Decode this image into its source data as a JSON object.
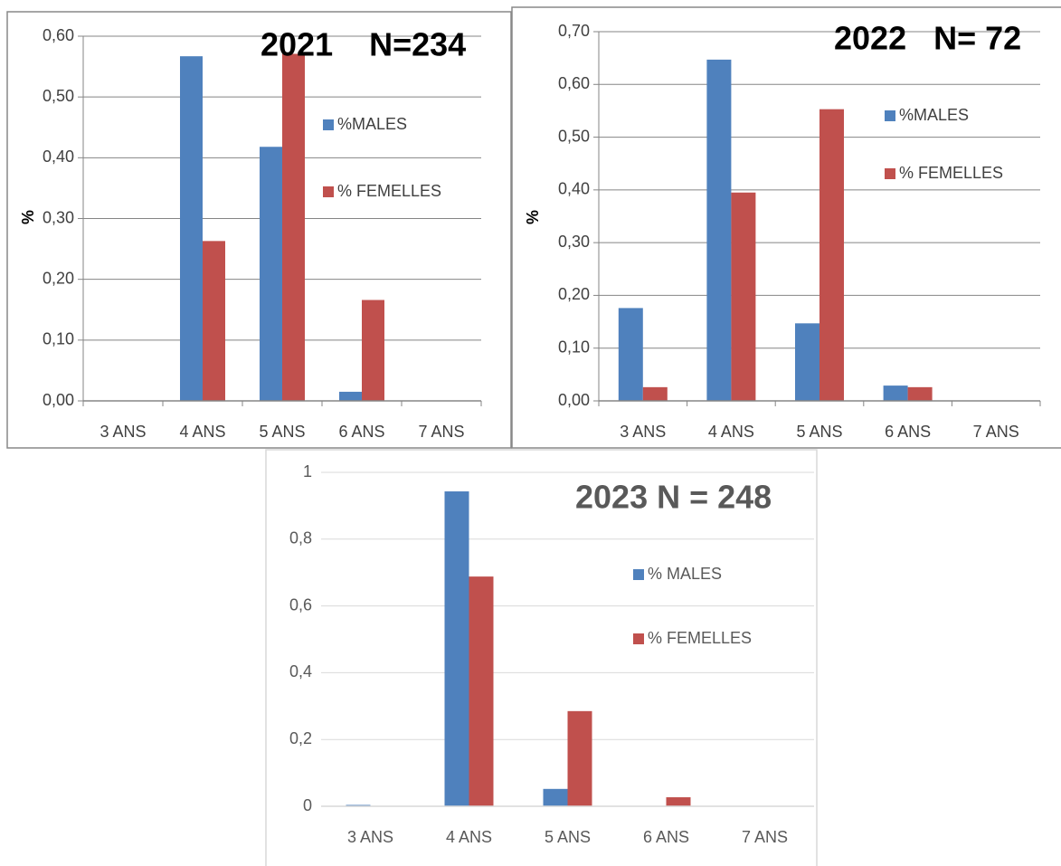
{
  "chart_data": [
    {
      "type": "bar",
      "title": "2021    N=234",
      "y_label": "%",
      "categories": [
        "3 ANS",
        "4 ANS",
        "5 ANS",
        "6 ANS",
        "7 ANS"
      ],
      "series": [
        {
          "name": "%MALES",
          "color": "#4f81bd",
          "values": [
            0,
            0.567,
            0.418,
            0.015,
            0
          ]
        },
        {
          "name": "% FEMELLES",
          "color": "#c0504d",
          "values": [
            0,
            0.263,
            0.571,
            0.166,
            0
          ]
        }
      ],
      "ylim": [
        0,
        0.6
      ],
      "yticks": [
        {
          "value": 0,
          "label": "0,00"
        },
        {
          "value": 0.1,
          "label": "0,10"
        },
        {
          "value": 0.2,
          "label": "0,20"
        },
        {
          "value": 0.3,
          "label": "0,30"
        },
        {
          "value": 0.4,
          "label": "0,40"
        },
        {
          "value": 0.5,
          "label": "0,50"
        },
        {
          "value": 0.6,
          "label": "0,60"
        }
      ],
      "grid": true
    },
    {
      "type": "bar",
      "title": "2022   N= 72",
      "y_label": "%",
      "categories": [
        "3 ANS",
        "4 ANS",
        "5 ANS",
        "6 ANS",
        "7 ANS"
      ],
      "series": [
        {
          "name": "%MALES",
          "color": "#4f81bd",
          "values": [
            0.176,
            0.647,
            0.147,
            0.029,
            0
          ]
        },
        {
          "name": "% FEMELLES",
          "color": "#c0504d",
          "values": [
            0.026,
            0.395,
            0.553,
            0.026,
            0
          ]
        }
      ],
      "ylim": [
        0,
        0.7
      ],
      "yticks": [
        {
          "value": 0,
          "label": "0,00"
        },
        {
          "value": 0.1,
          "label": "0,10"
        },
        {
          "value": 0.2,
          "label": "0,20"
        },
        {
          "value": 0.3,
          "label": "0,30"
        },
        {
          "value": 0.4,
          "label": "0,40"
        },
        {
          "value": 0.5,
          "label": "0,50"
        },
        {
          "value": 0.6,
          "label": "0,60"
        },
        {
          "value": 0.7,
          "label": "0,70"
        }
      ],
      "grid": true
    },
    {
      "type": "bar",
      "title": "2023 N = 248",
      "categories": [
        "3 ANS",
        "4 ANS",
        "5 ANS",
        "6 ANS",
        "7 ANS"
      ],
      "series": [
        {
          "name": "% MALES",
          "color": "#4f81bd",
          "values": [
            0.004,
            0.943,
            0.052,
            0,
            0
          ]
        },
        {
          "name": "% FEMELLES",
          "color": "#c0504d",
          "values": [
            0,
            0.688,
            0.285,
            0.027,
            0
          ]
        }
      ],
      "ylim": [
        0,
        1
      ],
      "yticks": [
        0,
        {
          "value": 0.2,
          "label": "0,2"
        },
        {
          "value": 0.4,
          "label": "0,4"
        },
        {
          "value": 0.6,
          "label": "0,6"
        },
        {
          "value": 0.8,
          "label": "0,8"
        },
        1
      ],
      "grid": true
    }
  ]
}
